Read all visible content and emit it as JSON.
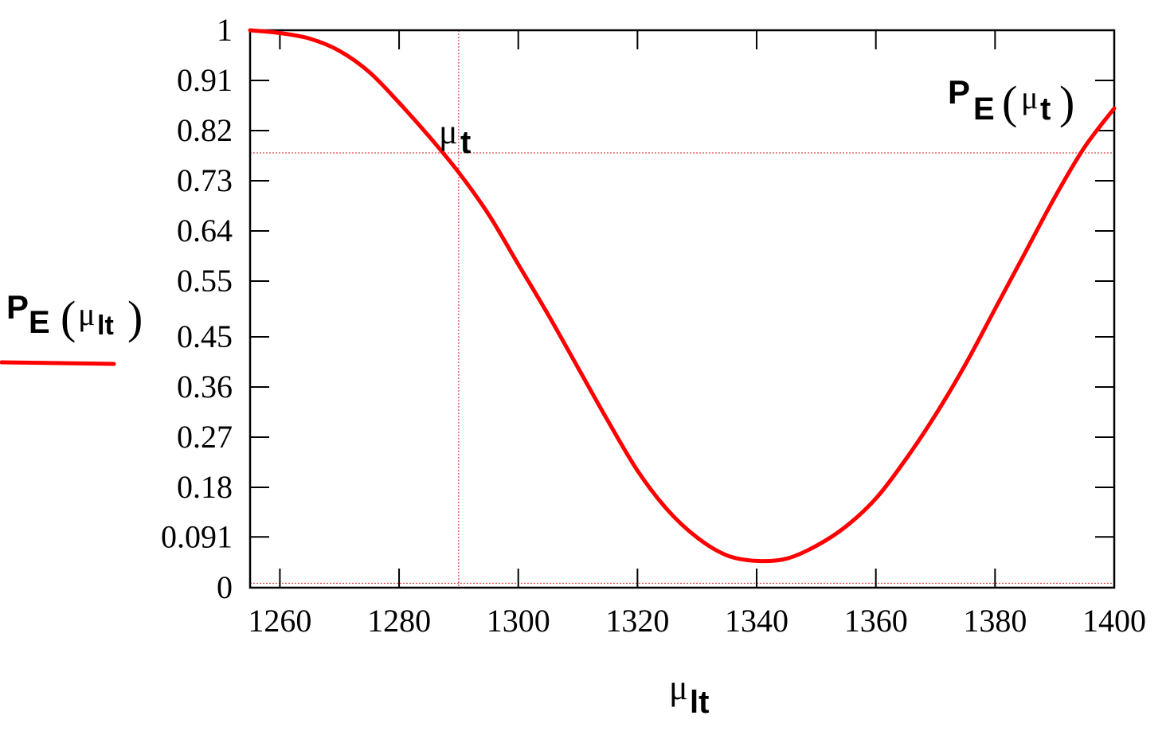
{
  "chart_data": {
    "type": "line",
    "x_axis": {
      "label_base": "μ",
      "label_sub": "lt",
      "range": [
        1255,
        1400
      ],
      "ticks": [
        1260,
        1280,
        1300,
        1320,
        1340,
        1360,
        1380,
        1400
      ],
      "tick_labels": [
        "1260",
        "1280",
        "1300",
        "1320",
        "1340",
        "1360",
        "1380",
        "1400"
      ]
    },
    "y_axis": {
      "label": {
        "p": "P",
        "sub": "E",
        "open": "(",
        "mu": "μ",
        "mu_sub": "lt",
        "close": ")"
      },
      "range": [
        0,
        1
      ],
      "ticks": [
        1,
        0.91,
        0.82,
        0.73,
        0.64,
        0.55,
        0.45,
        0.36,
        0.27,
        0.18,
        0.091,
        0
      ],
      "tick_labels": [
        "1",
        "0.91",
        "0.82",
        "0.73",
        "0.64",
        "0.55",
        "0.45",
        "0.36",
        "0.27",
        "0.18",
        "0.091",
        "0"
      ]
    },
    "grid": false,
    "series": [
      {
        "color": "#ff0000",
        "x": [
          1255,
          1260,
          1265,
          1270,
          1275,
          1280,
          1285,
          1290,
          1295,
          1300,
          1305,
          1310,
          1315,
          1320,
          1325,
          1330,
          1335,
          1340,
          1345,
          1350,
          1355,
          1360,
          1365,
          1370,
          1375,
          1380,
          1385,
          1390,
          1395,
          1400
        ],
        "y": [
          1.0,
          0.995,
          0.985,
          0.963,
          0.925,
          0.87,
          0.81,
          0.745,
          0.67,
          0.58,
          0.49,
          0.395,
          0.3,
          0.21,
          0.14,
          0.09,
          0.058,
          0.048,
          0.052,
          0.075,
          0.11,
          0.16,
          0.23,
          0.31,
          0.4,
          0.5,
          0.6,
          0.7,
          0.79,
          0.86
        ]
      }
    ],
    "reference_lines": {
      "vertical_x": 1290,
      "horizontal_y": 0.78,
      "baseline_y": 0.008,
      "color": "#d02020"
    },
    "annotations": {
      "mu_t": {
        "base": "μ",
        "sub": "t",
        "x": 1290,
        "y": 0.78
      },
      "pe_mu_t": {
        "p": "P",
        "sub": "E",
        "open": "(",
        "mu": "μ",
        "mu_sub": "t",
        "close": ")"
      }
    },
    "legend": {
      "position": "left",
      "color": "#ff0000"
    }
  }
}
